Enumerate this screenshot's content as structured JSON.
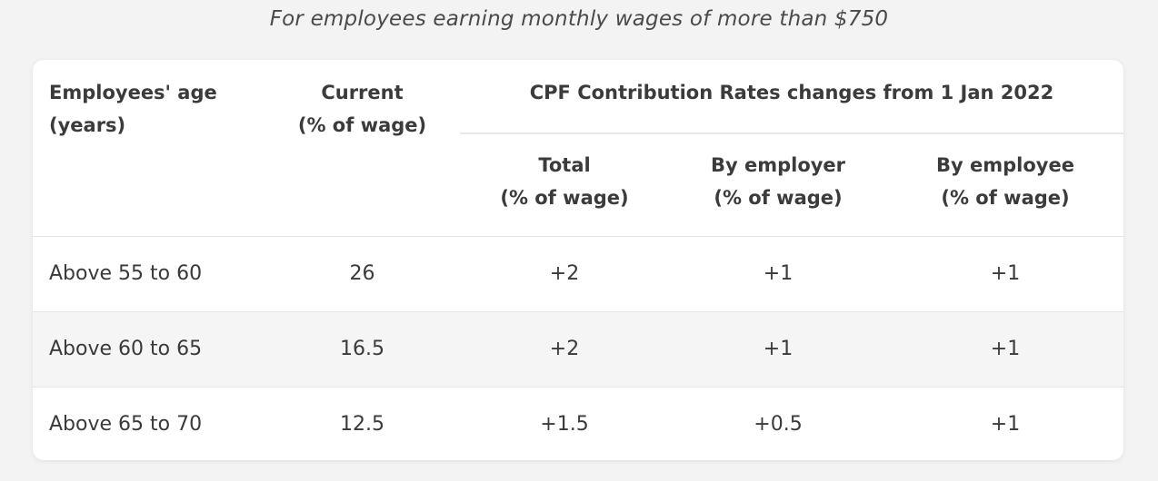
{
  "caption": "For employees earning monthly wages of more than $750",
  "table": {
    "headers": {
      "age": {
        "line1": "Employees' age",
        "line2": "(years)"
      },
      "current": {
        "line1": "Current",
        "line2": "(% of wage)"
      },
      "group": "CPF Contribution Rates changes from 1 Jan 2022",
      "total": {
        "line1": "Total",
        "line2": "(% of wage)"
      },
      "employer": {
        "line1": "By employer",
        "line2": "(% of wage)"
      },
      "employee": {
        "line1": "By employee",
        "line2": "(% of wage)"
      }
    },
    "rows": [
      {
        "age": "Above 55 to 60",
        "current": "26",
        "total": "+2",
        "employer": "+1",
        "employee": "+1"
      },
      {
        "age": "Above 60 to 65",
        "current": "16.5",
        "total": "+2",
        "employer": "+1",
        "employee": "+1"
      },
      {
        "age": "Above 65 to 70",
        "current": "12.5",
        "total": "+1.5",
        "employer": "+0.5",
        "employee": "+1"
      }
    ]
  }
}
